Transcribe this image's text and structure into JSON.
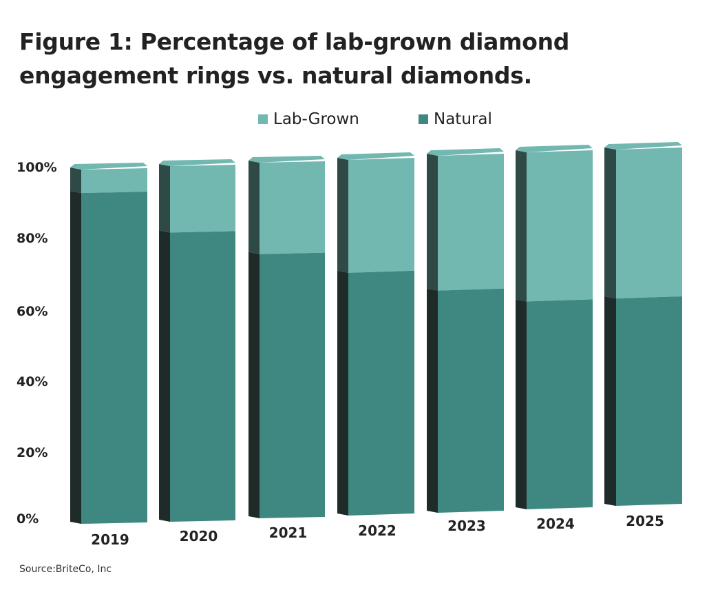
{
  "title": {
    "line1": "Figure 1: Percentage of lab-grown diamond",
    "line2": "engagement rings vs. natural diamonds."
  },
  "source": "Source:BriteCo, Inc",
  "colors": {
    "lab_grown": "#72b8b0",
    "natural": "#3f8882",
    "side_dark": "#1f2b29",
    "side_light": "#2f4a46"
  },
  "chart_data": {
    "type": "bar",
    "stacked": true,
    "style": "3d-columns",
    "categories": [
      "2019",
      "2020",
      "2021",
      "2022",
      "2023",
      "2024",
      "2025"
    ],
    "series": [
      {
        "name": "Lab-Grown",
        "values": [
          7,
          19,
          26,
          32,
          38,
          42,
          42
        ]
      },
      {
        "name": "Natural",
        "values": [
          93,
          81,
          74,
          68,
          62,
          58,
          58
        ]
      }
    ],
    "yticks": [
      "0%",
      "20%",
      "40%",
      "60%",
      "80%",
      "100%"
    ],
    "ylim": [
      0,
      100
    ],
    "legend": "top-center",
    "grid": false
  }
}
